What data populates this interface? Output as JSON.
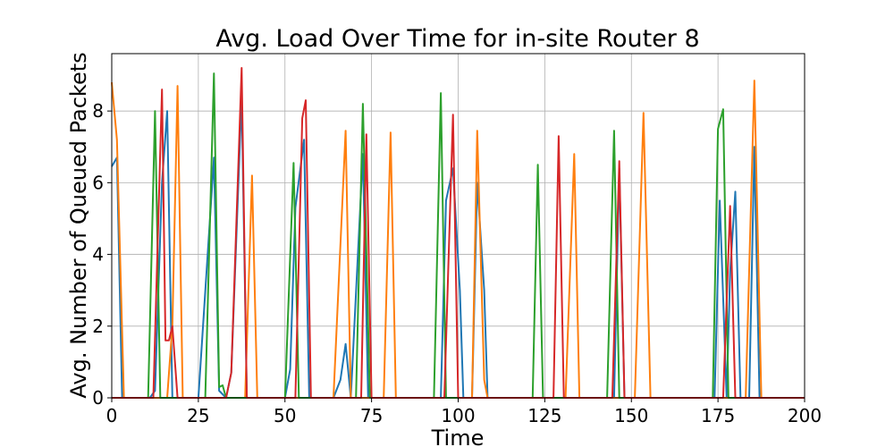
{
  "chart_data": {
    "type": "line",
    "title": "Avg. Load Over Time for in-site Router 8",
    "xlabel": "Time",
    "ylabel": "Avg. Number of Queued Packets",
    "xlim": [
      0,
      200
    ],
    "ylim": [
      0,
      9.6
    ],
    "xticks": [
      0,
      25,
      50,
      75,
      100,
      125,
      150,
      175,
      200
    ],
    "yticks": [
      0,
      2,
      4,
      6,
      8
    ],
    "grid": true,
    "series": [
      {
        "color": "#1f77b4",
        "points": [
          [
            0,
            6.45
          ],
          [
            1.5,
            6.7
          ],
          [
            3,
            0
          ],
          [
            11,
            0
          ],
          [
            12.5,
            0.2
          ],
          [
            14.5,
            6.0
          ],
          [
            16,
            8.0
          ],
          [
            17.5,
            0
          ],
          [
            25,
            0
          ],
          [
            29.5,
            6.7
          ],
          [
            31,
            0.2
          ],
          [
            33,
            0
          ],
          [
            34.5,
            0.7
          ],
          [
            37.5,
            8.4
          ],
          [
            39,
            0
          ],
          [
            50,
            0
          ],
          [
            51.5,
            0.8
          ],
          [
            53,
            5.3
          ],
          [
            55.5,
            7.2
          ],
          [
            57,
            0
          ],
          [
            64,
            0
          ],
          [
            66,
            0.5
          ],
          [
            67.5,
            1.5
          ],
          [
            69,
            0
          ],
          [
            72.5,
            6.8
          ],
          [
            74,
            0
          ],
          [
            95,
            0
          ],
          [
            96.5,
            5.5
          ],
          [
            98.5,
            6.4
          ],
          [
            100.5,
            3.0
          ],
          [
            101.5,
            0
          ],
          [
            104,
            0
          ],
          [
            105.5,
            6.0
          ],
          [
            107.5,
            3.0
          ],
          [
            108.5,
            0
          ],
          [
            145,
            0
          ],
          [
            146.5,
            6.4
          ],
          [
            148,
            0
          ],
          [
            174,
            0
          ],
          [
            175.5,
            5.5
          ],
          [
            177.5,
            0
          ],
          [
            178.5,
            3.5
          ],
          [
            180,
            5.75
          ],
          [
            181.5,
            0
          ],
          [
            184,
            0
          ],
          [
            185.5,
            7.0
          ],
          [
            187,
            0
          ],
          [
            200,
            0
          ]
        ]
      },
      {
        "color": "#ff7f0e",
        "points": [
          [
            0,
            8.8
          ],
          [
            1.5,
            7.2
          ],
          [
            3.5,
            0
          ],
          [
            16,
            0
          ],
          [
            17.5,
            2.0
          ],
          [
            19,
            8.7
          ],
          [
            20.5,
            0
          ],
          [
            38.5,
            0
          ],
          [
            40.5,
            6.2
          ],
          [
            42,
            0
          ],
          [
            64,
            0
          ],
          [
            67.5,
            7.45
          ],
          [
            69,
            0
          ],
          [
            78.5,
            0
          ],
          [
            80.5,
            7.4
          ],
          [
            82,
            0
          ],
          [
            104,
            0
          ],
          [
            105.5,
            7.45
          ],
          [
            107.5,
            0.5
          ],
          [
            108.5,
            0
          ],
          [
            131,
            0
          ],
          [
            133.5,
            6.8
          ],
          [
            135,
            0
          ],
          [
            151,
            0
          ],
          [
            153.5,
            7.95
          ],
          [
            155.5,
            0
          ],
          [
            183,
            0
          ],
          [
            185.5,
            8.85
          ],
          [
            187.5,
            0
          ],
          [
            200,
            0
          ]
        ]
      },
      {
        "color": "#2ca02c",
        "points": [
          [
            0,
            0
          ],
          [
            10.5,
            0
          ],
          [
            12.5,
            8.0
          ],
          [
            14,
            0
          ],
          [
            27,
            0
          ],
          [
            29.5,
            9.05
          ],
          [
            31,
            0.3
          ],
          [
            32,
            0.35
          ],
          [
            33,
            0
          ],
          [
            50,
            0
          ],
          [
            52.5,
            6.55
          ],
          [
            54,
            0
          ],
          [
            70.5,
            0
          ],
          [
            72.5,
            8.2
          ],
          [
            74.5,
            0
          ],
          [
            93,
            0
          ],
          [
            95,
            8.5
          ],
          [
            96.5,
            0
          ],
          [
            121.5,
            0
          ],
          [
            123,
            6.5
          ],
          [
            124.5,
            0
          ],
          [
            143,
            0
          ],
          [
            145,
            7.45
          ],
          [
            146.5,
            0
          ],
          [
            173.5,
            0
          ],
          [
            175,
            7.5
          ],
          [
            176.5,
            8.05
          ],
          [
            178,
            0
          ],
          [
            200,
            0
          ]
        ]
      },
      {
        "color": "#d62728",
        "points": [
          [
            0,
            0
          ],
          [
            12,
            0
          ],
          [
            14.5,
            8.6
          ],
          [
            15.5,
            1.6
          ],
          [
            16.5,
            1.6
          ],
          [
            17.5,
            2.0
          ],
          [
            19,
            0
          ],
          [
            33,
            0
          ],
          [
            34.5,
            0.7
          ],
          [
            37.5,
            9.2
          ],
          [
            39,
            0
          ],
          [
            53,
            0
          ],
          [
            55,
            7.8
          ],
          [
            56,
            8.3
          ],
          [
            57.5,
            0
          ],
          [
            72,
            0
          ],
          [
            73.5,
            7.35
          ],
          [
            75,
            0
          ],
          [
            96,
            0
          ],
          [
            98.5,
            7.9
          ],
          [
            100,
            0
          ],
          [
            127.5,
            0
          ],
          [
            129,
            7.3
          ],
          [
            130.5,
            0
          ],
          [
            144.5,
            0
          ],
          [
            146.5,
            6.6
          ],
          [
            148,
            0
          ],
          [
            176.5,
            0
          ],
          [
            178.5,
            5.35
          ],
          [
            180,
            0
          ],
          [
            200,
            0
          ]
        ]
      }
    ]
  }
}
